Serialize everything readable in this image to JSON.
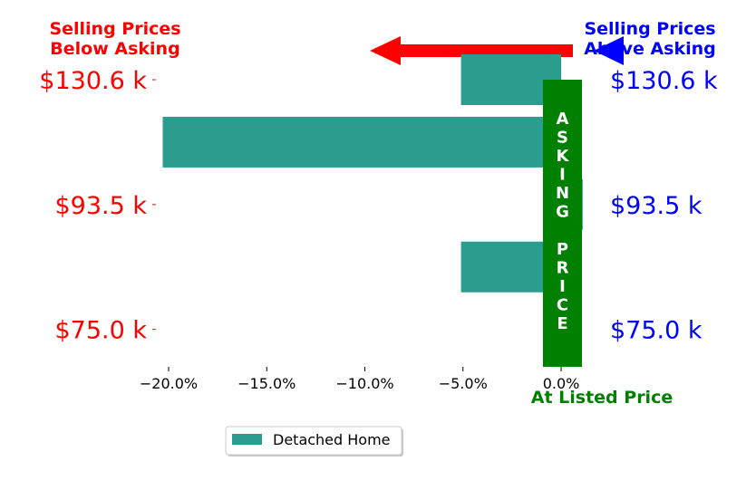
{
  "header": {
    "left_label_line1": "Selling Prices",
    "left_label_line2": "Below Asking",
    "right_label_line1": "Selling Prices",
    "right_label_line2": "Above Asking",
    "left_color": "#ff0000",
    "right_color": "#0000ff"
  },
  "asking_band": {
    "letters_top": [
      "A",
      "S",
      "K",
      "I",
      "N",
      "G"
    ],
    "letters_bottom": [
      "P",
      "R",
      "I",
      "C",
      "E"
    ],
    "color": "#008000",
    "listed_label": "At Listed Price"
  },
  "legend": {
    "label": "Detached Home"
  },
  "chart_data": {
    "type": "bar",
    "orientation": "horizontal",
    "series": [
      {
        "name": "Detached Home",
        "color": "#2a9d8f",
        "values": [
          -5.1,
          1.1,
          -20.3,
          -5.1
        ]
      }
    ],
    "row_positions": [
      0.5,
      1.0,
      1.5,
      2.0
    ],
    "y_ticks": [
      {
        "pos": 0.0,
        "left_label": "$75.0 k",
        "right_label": "$75.0 k"
      },
      {
        "pos": 1.0,
        "left_label": "$93.5 k",
        "right_label": "$93.5 k"
      },
      {
        "pos": 2.0,
        "left_label": "$130.6 k",
        "right_label": "$130.6 k"
      }
    ],
    "xlim": [
      -20.6,
      1.2
    ],
    "ylim": [
      -0.3,
      2.0
    ],
    "x_ticks": [
      -20,
      -15,
      -10,
      -5,
      0
    ],
    "x_tick_labels": [
      "−20.0%",
      "−15.0%",
      "−10.0%",
      "−5.0%",
      "0.0%"
    ],
    "grid": false,
    "legend_position": "bottom-center"
  }
}
